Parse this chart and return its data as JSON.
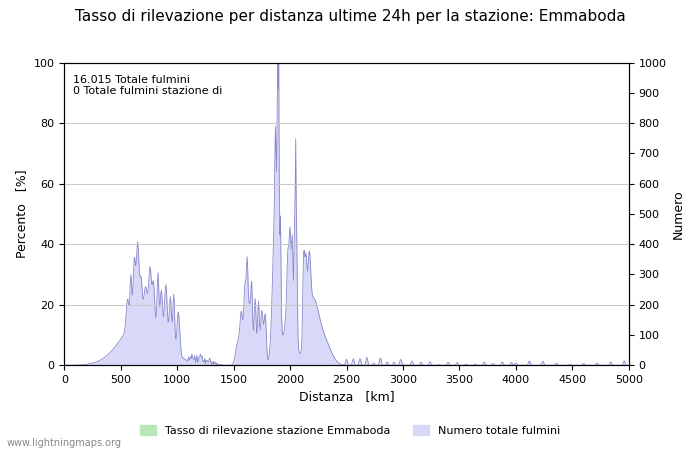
{
  "title": "Tasso di rilevazione per distanza ultime 24h per la stazione: Emmaboda",
  "xlabel": "Distanza   [km]",
  "ylabel_left": "Percento   [%]",
  "ylabel_right": "Numero",
  "annotation_lines": [
    "16.015 Totale fulmini",
    "0 Totale fulmini stazione di"
  ],
  "xlim": [
    0,
    5000
  ],
  "ylim_left": [
    0,
    100
  ],
  "ylim_right": [
    0,
    1000
  ],
  "xticks": [
    0,
    500,
    1000,
    1500,
    2000,
    2500,
    3000,
    3500,
    4000,
    4500,
    5000
  ],
  "yticks_left": [
    0,
    20,
    40,
    60,
    80,
    100
  ],
  "yticks_right": [
    0,
    100,
    200,
    300,
    400,
    500,
    600,
    700,
    800,
    900,
    1000
  ],
  "grid_color": "#c8c8c8",
  "fill_blue_color": "#d8d8f8",
  "fill_green_color": "#b8e8b8",
  "line_blue_color": "#8888cc",
  "legend_label_green": "Tasso di rilevazione stazione Emmaboda",
  "legend_label_blue": "Numero totale fulmini",
  "watermark": "www.lightningmaps.org",
  "bg_color": "#ffffff",
  "title_fontsize": 11,
  "axis_fontsize": 9,
  "tick_fontsize": 8,
  "annotation_fontsize": 8
}
